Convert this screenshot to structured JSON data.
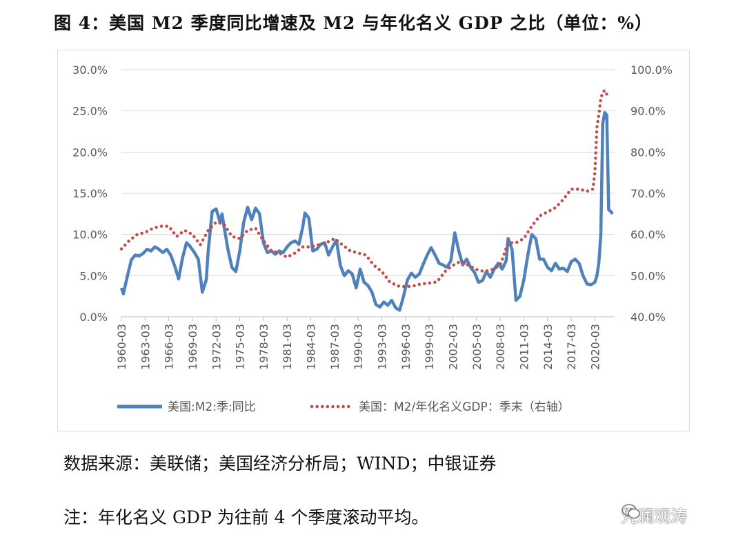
{
  "title": "图 4：美国 M2 季度同比增速及 M2 与年化名义 GDP 之比（单位：%）",
  "source": "数据来源：美联储；美国经济分析局；WIND；中银证券",
  "note": "注：年化名义 GDP 为往前 4 个季度滚动平均。",
  "watermark": "凭澜观涛",
  "watermark_icon": "wechat-icon",
  "colors": {
    "m2_yoy": "#4f81bd",
    "m2_gdp": "#c0504d"
  },
  "chart_data": {
    "type": "line",
    "x_range": [
      1960,
      2022.5
    ],
    "x_tick_labels": [
      "1960-03",
      "1963-03",
      "1966-03",
      "1969-03",
      "1972-03",
      "1975-03",
      "1978-03",
      "1981-03",
      "1984-03",
      "1987-03",
      "1990-03",
      "1993-03",
      "1996-03",
      "1999-03",
      "2002-03",
      "2005-03",
      "2008-03",
      "2011-03",
      "2014-03",
      "2017-03",
      "2020-03"
    ],
    "y_left_range": [
      0,
      30
    ],
    "y_left_tick_labels": [
      "0.0%",
      "5.0%",
      "10.0%",
      "15.0%",
      "20.0%",
      "25.0%",
      "30.0%"
    ],
    "y_right_range": [
      40,
      100
    ],
    "y_right_tick_labels": [
      "40.0%",
      "50.0%",
      "60.0%",
      "70.0%",
      "80.0%",
      "90.0%",
      "100.0%"
    ],
    "legend_position": "bottom",
    "series": [
      {
        "name": "美国:M2:季:同比",
        "axis": "left",
        "style": "solid",
        "x": [
          1960.0,
          1960.25,
          1960.75,
          1961.25,
          1961.75,
          1962.25,
          1962.75,
          1963.25,
          1963.75,
          1964.25,
          1964.75,
          1965.25,
          1965.75,
          1966.25,
          1966.75,
          1967.25,
          1967.75,
          1968.25,
          1968.75,
          1969.25,
          1969.75,
          1970.25,
          1970.75,
          1971.0,
          1971.5,
          1972.0,
          1972.5,
          1972.75,
          1973.0,
          1973.5,
          1974.0,
          1974.5,
          1975.0,
          1975.5,
          1976.0,
          1976.5,
          1977.0,
          1977.5,
          1978.0,
          1978.5,
          1979.0,
          1979.5,
          1980.0,
          1980.5,
          1981.0,
          1981.5,
          1982.0,
          1982.5,
          1983.0,
          1983.25,
          1983.75,
          1984.25,
          1984.75,
          1985.25,
          1985.75,
          1986.25,
          1986.75,
          1987.25,
          1987.75,
          1988.25,
          1988.75,
          1989.25,
          1989.75,
          1990.25,
          1990.75,
          1991.25,
          1991.75,
          1992.25,
          1992.75,
          1993.25,
          1993.75,
          1994.25,
          1994.75,
          1995.25,
          1995.75,
          1996.25,
          1996.75,
          1997.25,
          1997.75,
          1998.25,
          1998.75,
          1999.25,
          1999.75,
          2000.25,
          2000.75,
          2001.25,
          2001.75,
          2002.25,
          2002.75,
          2003.25,
          2003.75,
          2004.25,
          2004.75,
          2005.25,
          2005.75,
          2006.25,
          2006.75,
          2007.25,
          2007.75,
          2008.25,
          2008.75,
          2009.0,
          2009.5,
          2010.0,
          2010.5,
          2011.0,
          2011.5,
          2012.0,
          2012.5,
          2013.0,
          2013.5,
          2014.0,
          2014.5,
          2015.0,
          2015.5,
          2016.0,
          2016.5,
          2017.0,
          2017.5,
          2018.0,
          2018.5,
          2019.0,
          2019.5,
          2020.0,
          2020.25,
          2020.5,
          2020.75,
          2021.0,
          2021.25,
          2021.5,
          2021.75,
          2022.0,
          2022.25
        ],
        "values": [
          3.5,
          2.8,
          4.9,
          6.9,
          7.5,
          7.4,
          7.7,
          8.2,
          8.0,
          8.5,
          8.2,
          7.8,
          8.2,
          7.5,
          6.2,
          4.6,
          7.2,
          9.0,
          8.5,
          7.8,
          7.0,
          3.0,
          4.5,
          8.0,
          12.8,
          13.1,
          11.5,
          12.5,
          11.0,
          8.2,
          6.0,
          5.5,
          8.0,
          11.5,
          13.3,
          11.8,
          13.2,
          12.5,
          9.0,
          7.8,
          8.0,
          7.6,
          8.0,
          7.8,
          8.5,
          9.0,
          9.2,
          8.8,
          11.0,
          12.6,
          12.0,
          8.0,
          8.2,
          8.8,
          9.0,
          7.5,
          8.5,
          9.3,
          6.2,
          5.0,
          5.6,
          5.2,
          3.5,
          5.8,
          4.2,
          3.8,
          3.0,
          1.5,
          1.2,
          1.8,
          1.4,
          2.0,
          1.1,
          0.8,
          2.5,
          4.5,
          5.3,
          4.8,
          5.2,
          6.4,
          7.5,
          8.4,
          7.5,
          6.5,
          6.3,
          6.0,
          6.8,
          10.2,
          8.0,
          6.3,
          7.0,
          6.0,
          5.4,
          4.2,
          4.4,
          5.5,
          4.8,
          5.8,
          6.5,
          5.8,
          6.8,
          9.5,
          8.2,
          2.0,
          2.5,
          4.5,
          7.5,
          10.0,
          9.5,
          7.0,
          7.0,
          6.0,
          5.6,
          6.5,
          5.8,
          5.9,
          5.5,
          6.7,
          7.0,
          6.5,
          5.0,
          4.0,
          3.9,
          4.2,
          5.0,
          6.5,
          10.0,
          23.5,
          24.8,
          24.5,
          13.0,
          12.8,
          12.5
        ],
        "legend_label": "美国:M2:季:同比"
      },
      {
        "name": "美国：M2/年化名义GDP：季末（右轴）",
        "axis": "right",
        "style": "dotted",
        "x": [
          1960.0,
          1961.0,
          1962.0,
          1963.0,
          1964.0,
          1965.0,
          1966.0,
          1967.0,
          1968.0,
          1969.0,
          1970.0,
          1971.0,
          1972.0,
          1973.0,
          1974.0,
          1975.0,
          1976.0,
          1977.0,
          1978.0,
          1979.0,
          1980.0,
          1981.0,
          1982.0,
          1983.0,
          1984.0,
          1985.0,
          1986.0,
          1987.0,
          1988.0,
          1989.0,
          1990.0,
          1991.0,
          1992.0,
          1993.0,
          1994.0,
          1995.0,
          1996.0,
          1997.0,
          1998.0,
          1999.0,
          2000.0,
          2001.0,
          2002.0,
          2003.0,
          2004.0,
          2005.0,
          2006.0,
          2007.0,
          2008.0,
          2009.0,
          2010.0,
          2011.0,
          2012.0,
          2013.0,
          2014.0,
          2015.0,
          2016.0,
          2017.0,
          2018.0,
          2019.0,
          2019.75,
          2020.0,
          2020.25,
          2020.5,
          2020.75,
          2021.0,
          2021.25,
          2021.5
        ],
        "values": [
          56.5,
          58.5,
          60.0,
          60.5,
          61.5,
          62.0,
          62.0,
          59.5,
          61.0,
          60.0,
          57.5,
          61.0,
          63.0,
          62.5,
          59.5,
          59.0,
          61.0,
          61.5,
          58.5,
          56.0,
          55.5,
          54.5,
          55.5,
          57.0,
          57.0,
          57.5,
          58.0,
          59.0,
          57.5,
          56.0,
          55.5,
          55.0,
          52.5,
          51.0,
          48.5,
          47.5,
          47.3,
          47.5,
          48.0,
          48.2,
          48.5,
          51.0,
          52.5,
          53.5,
          52.5,
          51.5,
          51.0,
          51.5,
          52.5,
          58.0,
          58.0,
          59.0,
          62.0,
          64.5,
          65.5,
          66.5,
          68.5,
          71.0,
          71.0,
          70.5,
          71.0,
          75.0,
          86.0,
          89.0,
          93.0,
          94.5,
          95.0,
          94.0
        ],
        "legend_label": "美国：M2/年化名义GDP：季末（右轴）"
      }
    ]
  }
}
